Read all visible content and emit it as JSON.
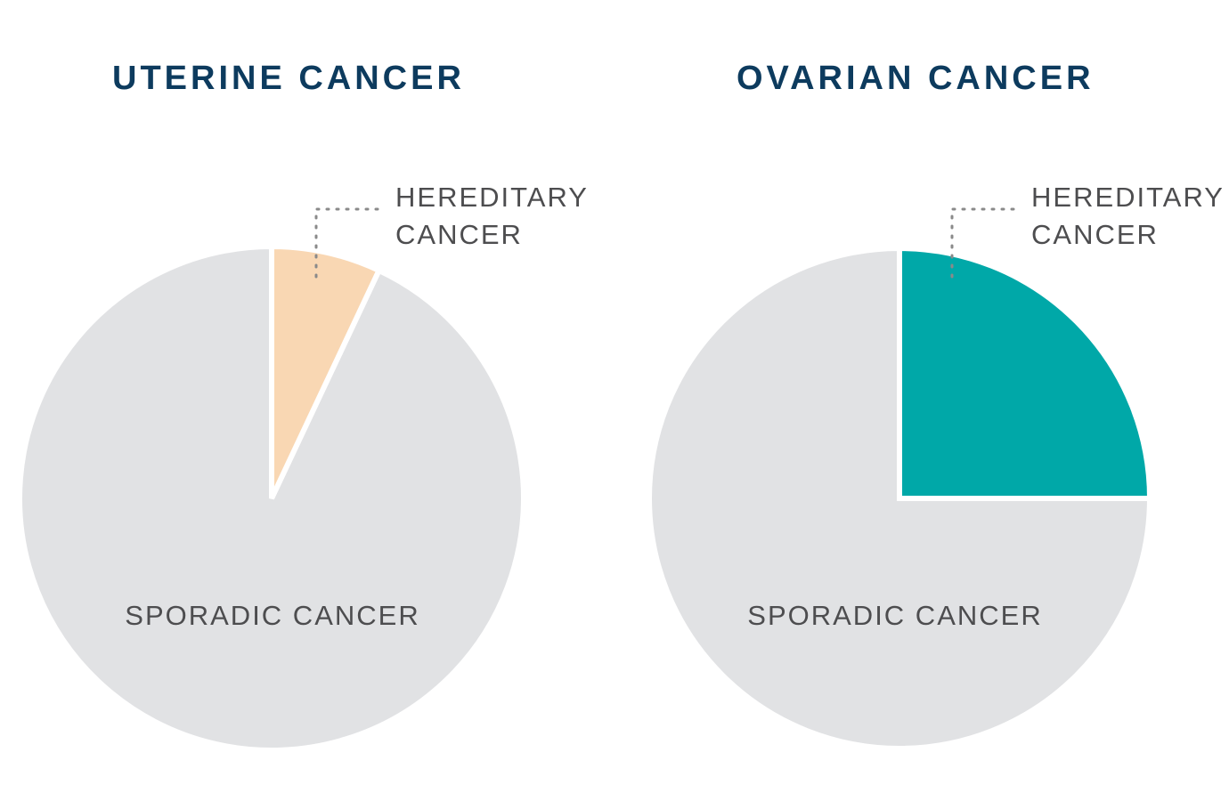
{
  "chart_data": [
    {
      "type": "pie",
      "title": "UTERINE CANCER",
      "categories": [
        "HEREDITARY CANCER",
        "SPORADIC CANCER"
      ],
      "values": [
        7,
        93
      ],
      "colors": [
        "#f9d7b3",
        "#e1e2e4"
      ],
      "hereditary_label": [
        "HEREDITARY",
        "CANCER"
      ],
      "sporadic_label": "SPORADIC CANCER"
    },
    {
      "type": "pie",
      "title": "OVARIAN CANCER",
      "categories": [
        "HEREDITARY CANCER",
        "SPORADIC CANCER"
      ],
      "values": [
        25,
        75
      ],
      "colors": [
        "#00a8a8",
        "#e1e2e4"
      ],
      "hereditary_label": [
        "HEREDITARY",
        "CANCER"
      ],
      "sporadic_label": "SPORADIC CANCER"
    }
  ],
  "colors": {
    "title": "#0d3b5e",
    "label": "#4d4d4f",
    "leader": "#8a8a8a"
  }
}
